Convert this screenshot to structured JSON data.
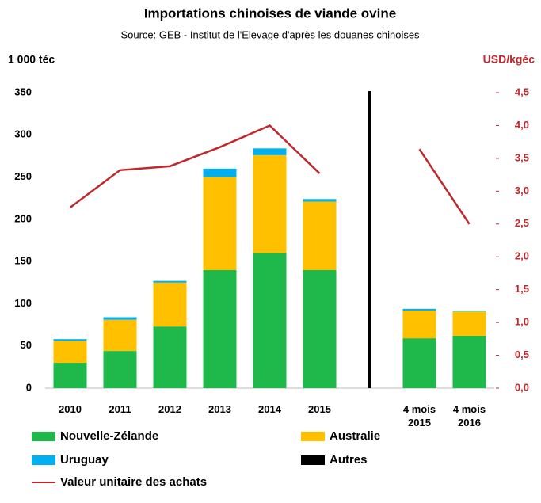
{
  "chart_data": {
    "type": "bar",
    "title": "Importations chinoises de viande ovine",
    "subtitle": "Source: GEB - Institut de l'Elevage d'après les douanes chinoises",
    "y_label": "1 000 téc",
    "y2_label": "USD/kgéc",
    "stacked": true,
    "categories": [
      "2010",
      "2011",
      "2012",
      "2013",
      "2014",
      "2015",
      null,
      "4 mois 2015",
      "4 mois 2016"
    ],
    "series": [
      {
        "name": "Nouvelle-Zélande",
        "color": "#1fb84a",
        "values": [
          30,
          44,
          73,
          140,
          160,
          140,
          null,
          59,
          62
        ]
      },
      {
        "name": "Australie",
        "color": "#ffc000",
        "values": [
          26,
          37,
          52,
          110,
          116,
          81,
          null,
          33,
          29
        ]
      },
      {
        "name": "Uruguay",
        "color": "#00b0f0",
        "values": [
          2,
          3,
          2,
          10,
          8,
          3,
          null,
          2,
          1
        ]
      },
      {
        "name": "Autres",
        "color": "#000000",
        "values": [
          0,
          0,
          0,
          0,
          0,
          0,
          null,
          0,
          0
        ]
      },
      {
        "name": "Valeur unitaire des achats",
        "type": "line",
        "axis": "y2",
        "color": "#c0282d",
        "values": [
          2.75,
          3.32,
          3.38,
          3.67,
          4.0,
          3.27,
          null,
          3.64,
          2.5
        ]
      }
    ],
    "ylim": [
      0,
      350
    ],
    "yticks": [
      0,
      50,
      100,
      150,
      200,
      250,
      300,
      350
    ],
    "y2lim": [
      0,
      4.5
    ],
    "y2ticks": [
      {
        "value": 0,
        "label": "0,0"
      },
      {
        "value": 0.5,
        "label": "0,5"
      },
      {
        "value": 1,
        "label": "1,0"
      },
      {
        "value": 1.5,
        "label": "1,5"
      },
      {
        "value": 2,
        "label": "2,0"
      },
      {
        "value": 2.5,
        "label": "2,5"
      },
      {
        "value": 3,
        "label": "3,0"
      },
      {
        "value": 3.5,
        "label": "3,5"
      },
      {
        "value": 4,
        "label": "4,0"
      },
      {
        "value": 4.5,
        "label": "4,5"
      }
    ],
    "grid": false
  }
}
